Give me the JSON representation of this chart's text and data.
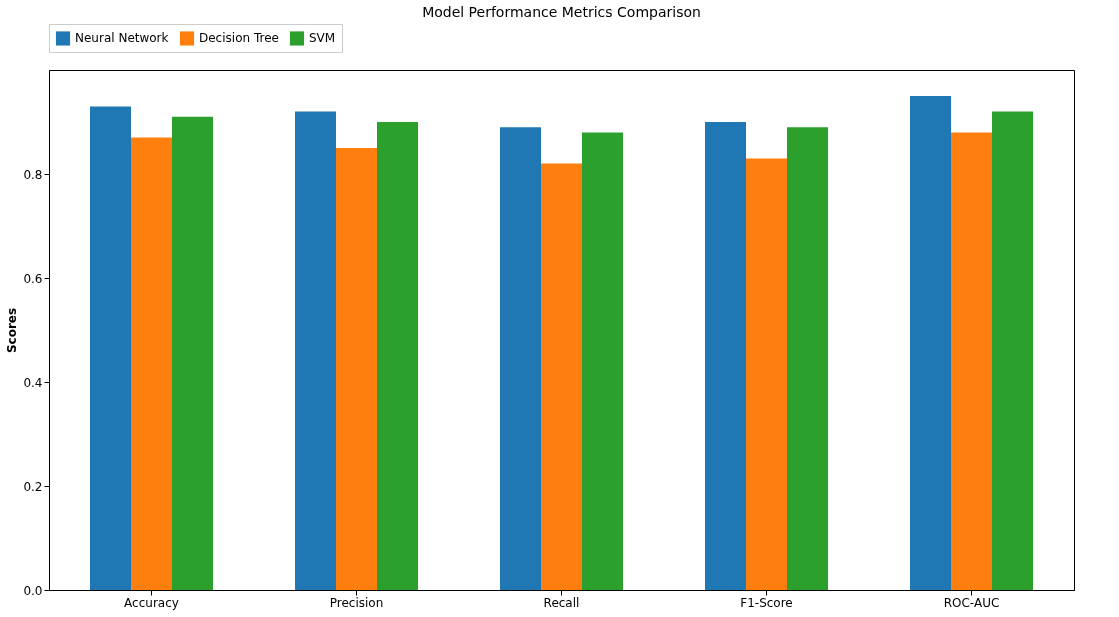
{
  "chart_data": {
    "type": "bar",
    "title": "Model Performance Metrics Comparison",
    "ylabel": "Scores",
    "categories": [
      "Accuracy",
      "Precision",
      "Recall",
      "F1-Score",
      "ROC-AUC"
    ],
    "series": [
      {
        "name": "Neural Network",
        "color": "#1f77b4",
        "values": [
          0.93,
          0.92,
          0.89,
          0.9,
          0.95
        ]
      },
      {
        "name": "Decision Tree",
        "color": "#ff7f0e",
        "values": [
          0.87,
          0.85,
          0.82,
          0.83,
          0.88
        ]
      },
      {
        "name": "SVM",
        "color": "#2ca02c",
        "values": [
          0.91,
          0.9,
          0.88,
          0.89,
          0.92
        ]
      }
    ],
    "ylim": [
      0,
      1.0
    ],
    "yticks": [
      {
        "value": 0,
        "label": "0.0"
      },
      {
        "value": 0.2,
        "label": "0.2"
      },
      {
        "value": 0.4,
        "label": "0.4"
      },
      {
        "value": 0.6,
        "label": "0.6"
      },
      {
        "value": 0.8,
        "label": "0.8"
      }
    ],
    "grid": false,
    "legend": "top"
  }
}
